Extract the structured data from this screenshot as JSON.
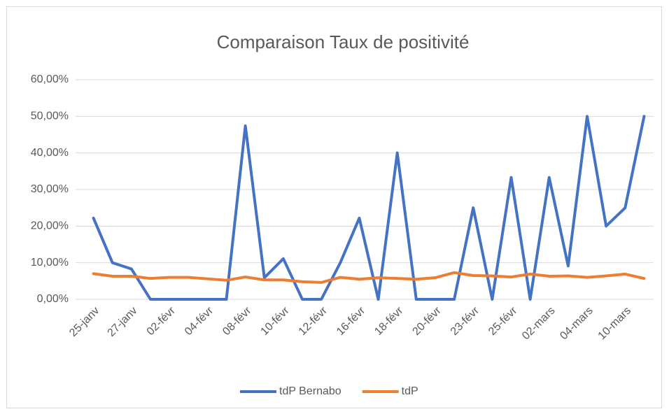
{
  "chart_data": {
    "type": "line",
    "title": "Comparaison Taux de positivité",
    "categories": [
      "25-janv",
      null,
      "27-janv",
      null,
      "02-févr",
      null,
      "04-févr",
      null,
      "08-févr",
      null,
      "10-févr",
      null,
      "12-févr",
      null,
      "16-févr",
      null,
      "18-févr",
      null,
      "20-févr",
      null,
      "23-févr",
      null,
      "25-févr",
      null,
      "02-mars",
      null,
      "04-mars",
      null,
      "10-mars",
      null
    ],
    "series": [
      {
        "name": "tdP Bernabo",
        "color": "#4472c4",
        "values": [
          22.2,
          10,
          8.3,
          0,
          0,
          0,
          0,
          0,
          47.4,
          5.9,
          11.1,
          0,
          0,
          10,
          22.2,
          0,
          40,
          0,
          0,
          0,
          25,
          0,
          33.3,
          0,
          33.3,
          9.1,
          50,
          20,
          25,
          50
        ]
      },
      {
        "name": "tdP",
        "color": "#ed7d31",
        "values": [
          7.0,
          6.3,
          6.3,
          5.7,
          6.0,
          6.0,
          5.6,
          5.2,
          6.1,
          5.3,
          5.3,
          4.8,
          4.6,
          6.0,
          5.5,
          5.9,
          5.7,
          5.5,
          5.9,
          7.3,
          6.5,
          6.4,
          6.1,
          6.9,
          6.3,
          6.4,
          6.0,
          6.4,
          6.9,
          5.7
        ]
      }
    ],
    "ylim": [
      0,
      60
    ],
    "yticks": [
      {
        "value": 0,
        "label": "0,00%"
      },
      {
        "value": 10,
        "label": "10,00%"
      },
      {
        "value": 20,
        "label": "20,00%"
      },
      {
        "value": 30,
        "label": "30,00%"
      },
      {
        "value": 40,
        "label": "40,00%"
      },
      {
        "value": 50,
        "label": "50,00%"
      },
      {
        "value": 60,
        "label": "60,00%"
      }
    ],
    "grid": true,
    "legend": "bottom"
  }
}
